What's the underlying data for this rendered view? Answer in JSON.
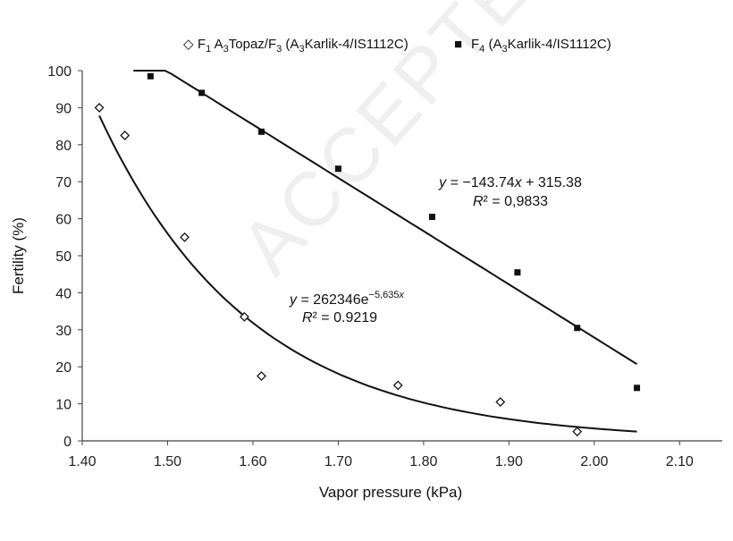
{
  "watermark": "ACCEPTED MANUSCRIPT",
  "chart_data": {
    "type": "scatter",
    "xlabel": "Vapor pressure (kPa)",
    "ylabel": "Fertility (%)",
    "xlim": [
      1.4,
      2.15
    ],
    "ylim": [
      0,
      100
    ],
    "xticks": [
      "1.40",
      "1.50",
      "1.60",
      "1.70",
      "1.80",
      "1.90",
      "2.00",
      "2.10"
    ],
    "yticks": [
      "0",
      "10",
      "20",
      "30",
      "40",
      "50",
      "60",
      "70",
      "80",
      "90",
      "100"
    ],
    "grid": false,
    "legend_position": "top",
    "series": [
      {
        "name": "F1 A3Topaz/F3 (A3Karlik-4/IS1112C)",
        "legend": {
          "symbol": "◇",
          "parts": [
            "F",
            "1",
            " A",
            "3",
            "Topaz/F",
            "3",
            " (A",
            "3",
            "Karlik-4/IS1112C)"
          ]
        },
        "marker": "diamond-open",
        "points": [
          [
            1.42,
            90
          ],
          [
            1.45,
            82.5
          ],
          [
            1.52,
            55
          ],
          [
            1.59,
            33.5
          ],
          [
            1.61,
            17.5
          ],
          [
            1.77,
            15
          ],
          [
            1.89,
            10.5
          ],
          [
            1.98,
            2.5
          ]
        ],
        "fit": {
          "type": "exponential",
          "a": 262346,
          "b": -5.635,
          "x_range": [
            1.42,
            2.05
          ]
        },
        "equation": "y = 262346e−5,635x",
        "equation_parts": [
          "y",
          " = 262346e",
          "−5,635",
          "x"
        ],
        "r2": "R² = 0.9219",
        "r2_parts": [
          "R",
          "² = 0.9219"
        ]
      },
      {
        "name": "F4 (A3Karlik-4/IS1112C)",
        "legend": {
          "symbol": "■",
          "parts": [
            "F",
            "4",
            " (A",
            "3",
            "Karlik-4/IS1112C)"
          ]
        },
        "marker": "square-filled",
        "points": [
          [
            1.48,
            98.5
          ],
          [
            1.54,
            94
          ],
          [
            1.61,
            83.5
          ],
          [
            1.7,
            73.5
          ],
          [
            1.81,
            60.5
          ],
          [
            1.91,
            45.5
          ],
          [
            1.98,
            30.5
          ],
          [
            2.05,
            14.3
          ]
        ],
        "fit": {
          "type": "linear",
          "slope": -143.74,
          "intercept": 315.38,
          "x_range": [
            1.46,
            2.05
          ]
        },
        "equation": "y = −143.74x + 315.38",
        "equation_parts": [
          "y",
          " = −143.74",
          "x",
          " + 315.38"
        ],
        "r2": "R² = 0,9833",
        "r2_parts": [
          "R",
          "² = 0,9833"
        ]
      }
    ]
  }
}
